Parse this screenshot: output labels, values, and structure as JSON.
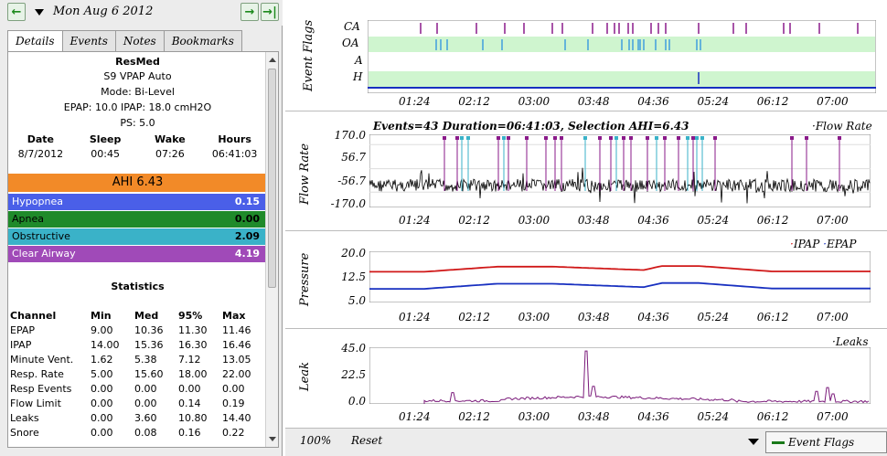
{
  "date_bar": {
    "date": "Mon Aug 6 2012",
    "prev_icon": "left-arrow-icon",
    "next_icon": "right-arrow-icon",
    "last_icon": "jump-end-icon"
  },
  "tabs": [
    "Details",
    "Events",
    "Notes",
    "Bookmarks"
  ],
  "machine": {
    "brand": "ResMed",
    "model": "S9 VPAP Auto",
    "mode": "Mode: Bi-Level",
    "pressures": "EPAP: 10.0 IPAP: 18.0 cmH2O",
    "ps": "PS: 5.0"
  },
  "session": {
    "headers": [
      "Date",
      "Sleep",
      "Wake",
      "Hours"
    ],
    "values": [
      "8/7/2012",
      "00:45",
      "07:26",
      "06:41:03"
    ]
  },
  "ahi": "AHI 6.43",
  "events": [
    {
      "label": "Hypopnea",
      "value": "0.15",
      "color": "#4a5fe8"
    },
    {
      "label": "Apnea",
      "value": "0.00",
      "color": "#1f8a2a"
    },
    {
      "label": "Obstructive",
      "value": "2.09",
      "color": "#3ab2c8"
    },
    {
      "label": "Clear Airway",
      "value": "4.19",
      "color": "#a04ab8"
    }
  ],
  "stats": {
    "title": "Statistics",
    "headers": [
      "Channel",
      "Min",
      "Med",
      "95%",
      "Max"
    ],
    "rows": [
      [
        "EPAP",
        "9.00",
        "10.36",
        "11.30",
        "11.46"
      ],
      [
        "IPAP",
        "14.00",
        "15.36",
        "16.30",
        "16.46"
      ],
      [
        "Minute Vent.",
        "1.62",
        "5.38",
        "7.12",
        "13.05"
      ],
      [
        "Resp. Rate",
        "5.00",
        "15.60",
        "18.00",
        "22.00"
      ],
      [
        "Resp Events",
        "0.00",
        "0.00",
        "0.00",
        "0.00"
      ],
      [
        "Flow Limit",
        "0.00",
        "0.00",
        "0.14",
        "0.19"
      ],
      [
        "Leaks",
        "0.00",
        "3.60",
        "10.80",
        "14.40"
      ],
      [
        "Snore",
        "0.00",
        "0.08",
        "0.16",
        "0.22"
      ]
    ]
  },
  "time_ticks": [
    "01:24",
    "02:12",
    "03:00",
    "03:48",
    "04:36",
    "05:24",
    "06:12",
    "07:00"
  ],
  "event_flags": {
    "ylabel": "Event Flags",
    "rows": [
      "CA",
      "OA",
      "A",
      "H"
    ]
  },
  "flow_rate": {
    "ylabel": "Flow Rate",
    "header": "Events=43 Duration=06:41:03, Selection AHI=6.43",
    "legend": "Flow Rate",
    "yticks": [
      "170.0",
      "56.7",
      "-56.7",
      "-170.0"
    ]
  },
  "pressure": {
    "ylabel": "Pressure",
    "legend": [
      "IPAP",
      "EPAP"
    ],
    "yticks": [
      "20.0",
      "12.5",
      "5.0"
    ],
    "colors": {
      "ipap": "#d01818",
      "epap": "#1830c0"
    }
  },
  "leak": {
    "ylabel": "Leak",
    "legend": "Leaks",
    "yticks": [
      "45.0",
      "22.5",
      "0.0"
    ],
    "color": "#7a1a7a"
  },
  "footer": {
    "zoom": "100%",
    "reset": "Reset",
    "graph_select": "Event Flags"
  }
}
